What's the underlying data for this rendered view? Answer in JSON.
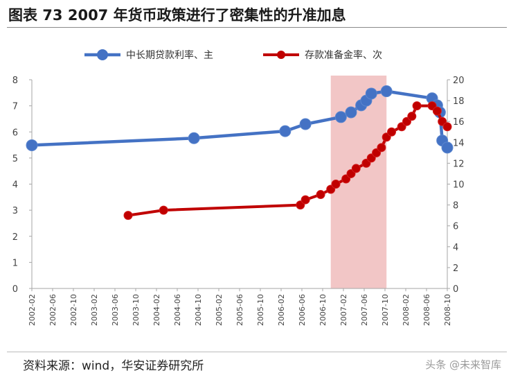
{
  "title": "图表 73 2007 年货币政策进行了密集性的升准加息",
  "source": "资料来源：wind，华安证券研究所",
  "watermark": "头条 @未来智库",
  "chart_data": {
    "type": "line",
    "x_tick_labels": [
      "2002-02",
      "2002-06",
      "2002-10",
      "2003-02",
      "2003-06",
      "2003-10",
      "2004-02",
      "2004-06",
      "2004-10",
      "2005-02",
      "2005-06",
      "2005-10",
      "2006-02",
      "2006-06",
      "2006-10",
      "2007-02",
      "2007-06",
      "2007-10",
      "2008-02",
      "2008-06",
      "2008-10"
    ],
    "y_left": {
      "min": 0,
      "max": 8,
      "ticks": [
        0,
        1,
        2,
        3,
        4,
        5,
        6,
        7,
        8
      ]
    },
    "y_right": {
      "min": 0,
      "max": 20,
      "ticks": [
        0,
        2,
        4,
        6,
        8,
        10,
        12,
        14,
        16,
        18,
        20
      ]
    },
    "grid": false,
    "legend_position": "top",
    "shaded_region": {
      "start": "2007-01",
      "end": "2007-12",
      "color": "#f2c6c6"
    },
    "series": [
      {
        "name": "中长期贷款利率、主",
        "axis": "left",
        "color": "#4472c4",
        "points": [
          {
            "x": "2002-02",
            "y": 5.49
          },
          {
            "x": "2004-10",
            "y": 5.76
          },
          {
            "x": "2006-04",
            "y": 6.03
          },
          {
            "x": "2006-08",
            "y": 6.3
          },
          {
            "x": "2007-03",
            "y": 6.57
          },
          {
            "x": "2007-05",
            "y": 6.75
          },
          {
            "x": "2007-07",
            "y": 7.02
          },
          {
            "x": "2007-08",
            "y": 7.2
          },
          {
            "x": "2007-09",
            "y": 7.47
          },
          {
            "x": "2007-12",
            "y": 7.56
          },
          {
            "x": "2008-09",
            "y": 7.29
          },
          {
            "x": "2008-10",
            "y": 7.02
          },
          {
            "x": "2008-10",
            "y": 6.75
          },
          {
            "x": "2008-11",
            "y": 5.67
          },
          {
            "x": "2008-12",
            "y": 5.4
          }
        ]
      },
      {
        "name": "存款准备金率、次",
        "axis": "right",
        "color": "#c00000",
        "points": [
          {
            "x": "2003-09",
            "y": 7.0
          },
          {
            "x": "2004-04",
            "y": 7.5
          },
          {
            "x": "2006-07",
            "y": 8.0
          },
          {
            "x": "2006-08",
            "y": 8.5
          },
          {
            "x": "2006-11",
            "y": 9.0
          },
          {
            "x": "2007-01",
            "y": 9.5
          },
          {
            "x": "2007-02",
            "y": 10.0
          },
          {
            "x": "2007-04",
            "y": 10.5
          },
          {
            "x": "2007-05",
            "y": 11.0
          },
          {
            "x": "2007-06",
            "y": 11.5
          },
          {
            "x": "2007-08",
            "y": 12.0
          },
          {
            "x": "2007-09",
            "y": 12.5
          },
          {
            "x": "2007-10",
            "y": 13.0
          },
          {
            "x": "2007-11",
            "y": 13.5
          },
          {
            "x": "2007-12",
            "y": 14.5
          },
          {
            "x": "2008-01",
            "y": 15.0
          },
          {
            "x": "2008-03",
            "y": 15.5
          },
          {
            "x": "2008-04",
            "y": 16.0
          },
          {
            "x": "2008-05",
            "y": 16.5
          },
          {
            "x": "2008-06",
            "y": 17.5
          },
          {
            "x": "2008-09",
            "y": 17.5
          },
          {
            "x": "2008-10",
            "y": 17.0
          },
          {
            "x": "2008-11",
            "y": 16.0
          },
          {
            "x": "2008-12",
            "y": 15.5
          }
        ]
      }
    ]
  }
}
